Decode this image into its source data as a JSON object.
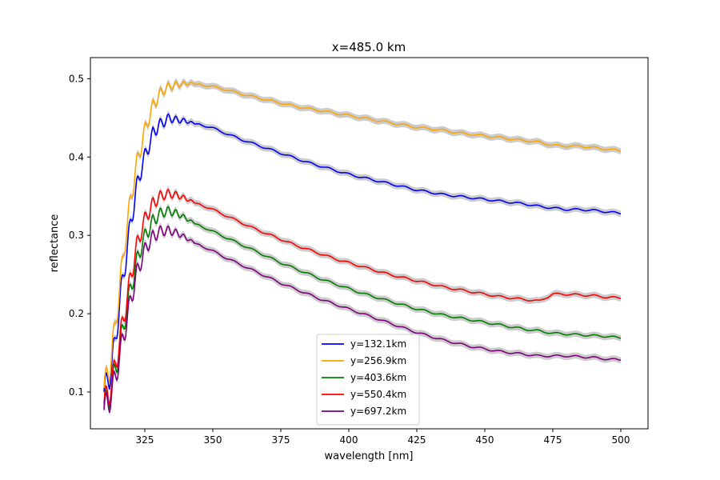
{
  "chart_data": {
    "type": "line",
    "title": "x=485.0 km",
    "xlabel": "wavelength [nm]",
    "ylabel": "reflectance",
    "xlim": [
      305,
      510
    ],
    "ylim": [
      0.053,
      0.527
    ],
    "xticks": [
      325,
      350,
      375,
      400,
      425,
      450,
      475,
      500
    ],
    "yticks": [
      0.1,
      0.2,
      0.3,
      0.4,
      0.5
    ],
    "xtick_labels": [
      "325",
      "350",
      "375",
      "400",
      "425",
      "450",
      "475",
      "500"
    ],
    "ytick_labels": [
      "0.1",
      "0.2",
      "0.3",
      "0.4",
      "0.5"
    ],
    "grid": false,
    "legend_position": "lower-center",
    "uncertainty_band_color": "#cccccc",
    "series": [
      {
        "name": "y=132.1km",
        "color": "#0000ff",
        "points": [
          [
            310,
            0.1
          ],
          [
            312,
            0.12
          ],
          [
            314,
            0.16
          ],
          [
            316,
            0.22
          ],
          [
            318,
            0.27
          ],
          [
            320,
            0.32
          ],
          [
            322,
            0.36
          ],
          [
            324,
            0.39
          ],
          [
            326,
            0.41
          ],
          [
            328,
            0.43
          ],
          [
            330,
            0.44
          ],
          [
            332,
            0.445
          ],
          [
            334,
            0.45
          ],
          [
            336,
            0.448
          ],
          [
            338,
            0.447
          ],
          [
            340,
            0.446
          ],
          [
            342,
            0.444
          ],
          [
            345,
            0.442
          ],
          [
            350,
            0.437
          ],
          [
            355,
            0.43
          ],
          [
            360,
            0.423
          ],
          [
            365,
            0.417
          ],
          [
            370,
            0.411
          ],
          [
            375,
            0.405
          ],
          [
            380,
            0.399
          ],
          [
            385,
            0.393
          ],
          [
            390,
            0.388
          ],
          [
            395,
            0.383
          ],
          [
            400,
            0.378
          ],
          [
            405,
            0.374
          ],
          [
            410,
            0.37
          ],
          [
            415,
            0.366
          ],
          [
            420,
            0.362
          ],
          [
            425,
            0.358
          ],
          [
            430,
            0.355
          ],
          [
            435,
            0.352
          ],
          [
            440,
            0.35
          ],
          [
            445,
            0.348
          ],
          [
            450,
            0.346
          ],
          [
            455,
            0.344
          ],
          [
            460,
            0.342
          ],
          [
            465,
            0.34
          ],
          [
            470,
            0.337
          ],
          [
            475,
            0.335
          ],
          [
            480,
            0.333
          ],
          [
            485,
            0.333
          ],
          [
            490,
            0.332
          ],
          [
            495,
            0.33
          ],
          [
            500,
            0.328
          ]
        ]
      },
      {
        "name": "y=256.9km",
        "color": "#ffa500",
        "points": [
          [
            310,
            0.105
          ],
          [
            312,
            0.13
          ],
          [
            314,
            0.18
          ],
          [
            316,
            0.24
          ],
          [
            318,
            0.3
          ],
          [
            320,
            0.35
          ],
          [
            322,
            0.39
          ],
          [
            324,
            0.42
          ],
          [
            326,
            0.445
          ],
          [
            328,
            0.465
          ],
          [
            330,
            0.478
          ],
          [
            332,
            0.486
          ],
          [
            334,
            0.49
          ],
          [
            336,
            0.492
          ],
          [
            338,
            0.493
          ],
          [
            340,
            0.494
          ],
          [
            342,
            0.494
          ],
          [
            345,
            0.493
          ],
          [
            350,
            0.49
          ],
          [
            355,
            0.486
          ],
          [
            360,
            0.481
          ],
          [
            365,
            0.477
          ],
          [
            370,
            0.473
          ],
          [
            375,
            0.469
          ],
          [
            380,
            0.465
          ],
          [
            385,
            0.462
          ],
          [
            390,
            0.459
          ],
          [
            395,
            0.456
          ],
          [
            400,
            0.453
          ],
          [
            405,
            0.45
          ],
          [
            410,
            0.447
          ],
          [
            415,
            0.444
          ],
          [
            420,
            0.441
          ],
          [
            425,
            0.438
          ],
          [
            430,
            0.436
          ],
          [
            435,
            0.434
          ],
          [
            440,
            0.431
          ],
          [
            445,
            0.429
          ],
          [
            450,
            0.427
          ],
          [
            455,
            0.425
          ],
          [
            460,
            0.423
          ],
          [
            465,
            0.421
          ],
          [
            470,
            0.419
          ],
          [
            475,
            0.415
          ],
          [
            480,
            0.414
          ],
          [
            485,
            0.414
          ],
          [
            490,
            0.412
          ],
          [
            495,
            0.41
          ],
          [
            500,
            0.408
          ]
        ]
      },
      {
        "name": "y=403.6km",
        "color": "#008000",
        "points": [
          [
            310,
            0.08
          ],
          [
            312,
            0.095
          ],
          [
            314,
            0.125
          ],
          [
            316,
            0.16
          ],
          [
            318,
            0.2
          ],
          [
            320,
            0.235
          ],
          [
            322,
            0.265
          ],
          [
            324,
            0.29
          ],
          [
            326,
            0.305
          ],
          [
            328,
            0.318
          ],
          [
            330,
            0.326
          ],
          [
            332,
            0.33
          ],
          [
            334,
            0.331
          ],
          [
            336,
            0.329
          ],
          [
            338,
            0.326
          ],
          [
            340,
            0.322
          ],
          [
            342,
            0.318
          ],
          [
            345,
            0.313
          ],
          [
            350,
            0.305
          ],
          [
            355,
            0.297
          ],
          [
            360,
            0.289
          ],
          [
            365,
            0.281
          ],
          [
            370,
            0.273
          ],
          [
            375,
            0.265
          ],
          [
            380,
            0.258
          ],
          [
            385,
            0.251
          ],
          [
            390,
            0.244
          ],
          [
            395,
            0.238
          ],
          [
            400,
            0.232
          ],
          [
            405,
            0.226
          ],
          [
            410,
            0.221
          ],
          [
            415,
            0.216
          ],
          [
            420,
            0.211
          ],
          [
            425,
            0.206
          ],
          [
            430,
            0.202
          ],
          [
            435,
            0.198
          ],
          [
            440,
            0.195
          ],
          [
            445,
            0.192
          ],
          [
            450,
            0.189
          ],
          [
            455,
            0.186
          ],
          [
            460,
            0.183
          ],
          [
            465,
            0.18
          ],
          [
            470,
            0.178
          ],
          [
            475,
            0.175
          ],
          [
            480,
            0.174
          ],
          [
            485,
            0.173
          ],
          [
            490,
            0.172
          ],
          [
            495,
            0.171
          ],
          [
            500,
            0.169
          ]
        ]
      },
      {
        "name": "y=550.4km",
        "color": "#ff0000",
        "points": [
          [
            310,
            0.085
          ],
          [
            312,
            0.1
          ],
          [
            314,
            0.13
          ],
          [
            316,
            0.17
          ],
          [
            318,
            0.21
          ],
          [
            320,
            0.25
          ],
          [
            322,
            0.285
          ],
          [
            324,
            0.31
          ],
          [
            326,
            0.328
          ],
          [
            328,
            0.34
          ],
          [
            330,
            0.348
          ],
          [
            332,
            0.352
          ],
          [
            334,
            0.353
          ],
          [
            336,
            0.352
          ],
          [
            338,
            0.35
          ],
          [
            340,
            0.347
          ],
          [
            342,
            0.344
          ],
          [
            345,
            0.34
          ],
          [
            350,
            0.333
          ],
          [
            355,
            0.325
          ],
          [
            360,
            0.317
          ],
          [
            365,
            0.309
          ],
          [
            370,
            0.302
          ],
          [
            375,
            0.295
          ],
          [
            380,
            0.288
          ],
          [
            385,
            0.282
          ],
          [
            390,
            0.276
          ],
          [
            395,
            0.27
          ],
          [
            400,
            0.265
          ],
          [
            405,
            0.26
          ],
          [
            410,
            0.255
          ],
          [
            415,
            0.25
          ],
          [
            420,
            0.246
          ],
          [
            425,
            0.242
          ],
          [
            430,
            0.238
          ],
          [
            435,
            0.234
          ],
          [
            440,
            0.231
          ],
          [
            445,
            0.228
          ],
          [
            450,
            0.225
          ],
          [
            455,
            0.222
          ],
          [
            460,
            0.22
          ],
          [
            465,
            0.218
          ],
          [
            470,
            0.216
          ],
          [
            475,
            0.225
          ],
          [
            478,
            0.225
          ],
          [
            485,
            0.224
          ],
          [
            490,
            0.223
          ],
          [
            495,
            0.221
          ],
          [
            500,
            0.22
          ]
        ]
      },
      {
        "name": "y=697.2km",
        "color": "#800080",
        "points": [
          [
            310,
            0.077
          ],
          [
            312,
            0.09
          ],
          [
            314,
            0.115
          ],
          [
            316,
            0.15
          ],
          [
            318,
            0.185
          ],
          [
            320,
            0.22
          ],
          [
            322,
            0.25
          ],
          [
            324,
            0.272
          ],
          [
            326,
            0.288
          ],
          [
            328,
            0.298
          ],
          [
            330,
            0.304
          ],
          [
            332,
            0.306
          ],
          [
            334,
            0.306
          ],
          [
            336,
            0.304
          ],
          [
            338,
            0.301
          ],
          [
            340,
            0.297
          ],
          [
            342,
            0.293
          ],
          [
            345,
            0.288
          ],
          [
            350,
            0.28
          ],
          [
            355,
            0.271
          ],
          [
            360,
            0.263
          ],
          [
            365,
            0.255
          ],
          [
            370,
            0.247
          ],
          [
            375,
            0.239
          ],
          [
            380,
            0.232
          ],
          [
            385,
            0.225
          ],
          [
            390,
            0.218
          ],
          [
            395,
            0.212
          ],
          [
            400,
            0.206
          ],
          [
            405,
            0.2
          ],
          [
            410,
            0.194
          ],
          [
            415,
            0.188
          ],
          [
            420,
            0.182
          ],
          [
            425,
            0.176
          ],
          [
            430,
            0.171
          ],
          [
            435,
            0.166
          ],
          [
            440,
            0.162
          ],
          [
            445,
            0.158
          ],
          [
            450,
            0.155
          ],
          [
            455,
            0.152
          ],
          [
            460,
            0.15
          ],
          [
            465,
            0.148
          ],
          [
            470,
            0.146
          ],
          [
            475,
            0.146
          ],
          [
            480,
            0.146
          ],
          [
            485,
            0.145
          ],
          [
            490,
            0.144
          ],
          [
            495,
            0.142
          ],
          [
            500,
            0.141
          ]
        ]
      }
    ]
  }
}
